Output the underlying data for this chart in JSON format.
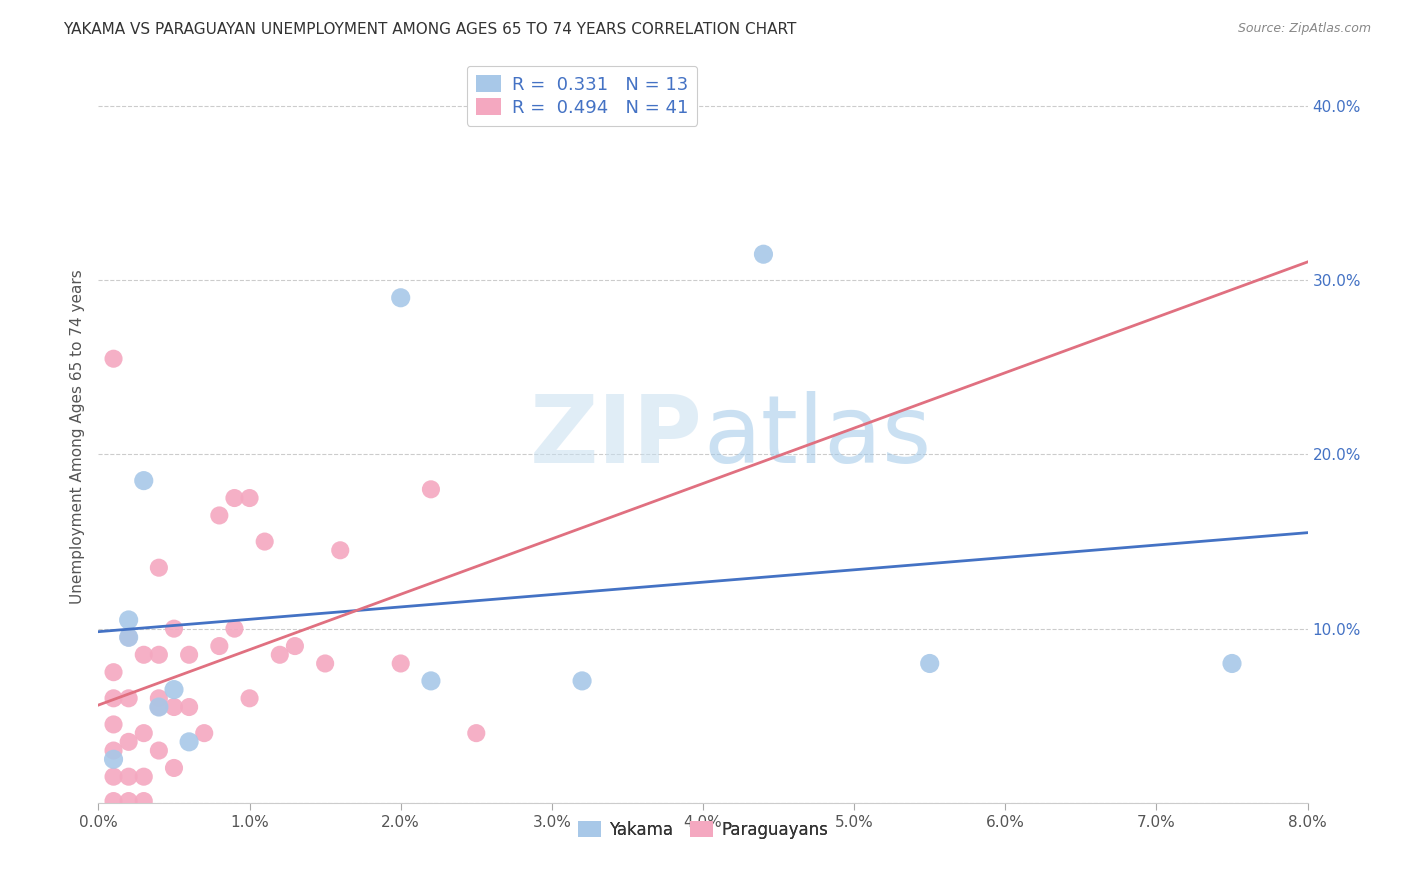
{
  "title": "YAKAMA VS PARAGUAYAN UNEMPLOYMENT AMONG AGES 65 TO 74 YEARS CORRELATION CHART",
  "source": "Source: ZipAtlas.com",
  "ylabel": "Unemployment Among Ages 65 to 74 years",
  "xlim": [
    0.0,
    0.08
  ],
  "ylim": [
    0.0,
    0.42
  ],
  "xticks": [
    0.0,
    0.01,
    0.02,
    0.03,
    0.04,
    0.05,
    0.06,
    0.07,
    0.08
  ],
  "xtick_labels": [
    "0.0%",
    "1.0%",
    "2.0%",
    "3.0%",
    "4.0%",
    "5.0%",
    "6.0%",
    "7.0%",
    "8.0%"
  ],
  "yticks": [
    0.0,
    0.1,
    0.2,
    0.3,
    0.4
  ],
  "ytick_labels": [
    "",
    "10.0%",
    "20.0%",
    "30.0%",
    "40.0%"
  ],
  "yakama_color": "#A8C8E8",
  "paraguayan_color": "#F4A8C0",
  "yakama_line_color": "#4472C4",
  "paraguayan_line_color": "#E07080",
  "legend_r1": "R =  0.331   N = 13",
  "legend_r2": "R =  0.494   N = 41",
  "watermark_zip": "ZIP",
  "watermark_atlas": "atlas",
  "background_color": "#ffffff",
  "grid_color": "#cccccc",
  "yakama_x": [
    0.001,
    0.002,
    0.002,
    0.003,
    0.004,
    0.005,
    0.006,
    0.02,
    0.022,
    0.032,
    0.044,
    0.055,
    0.075
  ],
  "yakama_y": [
    0.025,
    0.095,
    0.105,
    0.185,
    0.055,
    0.065,
    0.035,
    0.29,
    0.07,
    0.07,
    0.315,
    0.08,
    0.08
  ],
  "paraguayan_x": [
    0.001,
    0.001,
    0.001,
    0.001,
    0.001,
    0.001,
    0.001,
    0.002,
    0.002,
    0.002,
    0.002,
    0.002,
    0.003,
    0.003,
    0.003,
    0.003,
    0.004,
    0.004,
    0.004,
    0.004,
    0.004,
    0.005,
    0.005,
    0.005,
    0.006,
    0.006,
    0.007,
    0.008,
    0.008,
    0.009,
    0.009,
    0.01,
    0.01,
    0.011,
    0.012,
    0.013,
    0.015,
    0.016,
    0.02,
    0.022,
    0.025
  ],
  "paraguayan_y": [
    0.001,
    0.015,
    0.03,
    0.045,
    0.06,
    0.075,
    0.255,
    0.001,
    0.015,
    0.035,
    0.06,
    0.095,
    0.001,
    0.015,
    0.04,
    0.085,
    0.03,
    0.055,
    0.06,
    0.085,
    0.135,
    0.02,
    0.055,
    0.1,
    0.055,
    0.085,
    0.04,
    0.09,
    0.165,
    0.1,
    0.175,
    0.06,
    0.175,
    0.15,
    0.085,
    0.09,
    0.08,
    0.145,
    0.08,
    0.18,
    0.04
  ],
  "title_fontsize": 11,
  "source_fontsize": 9,
  "tick_fontsize": 11,
  "ylabel_fontsize": 11
}
